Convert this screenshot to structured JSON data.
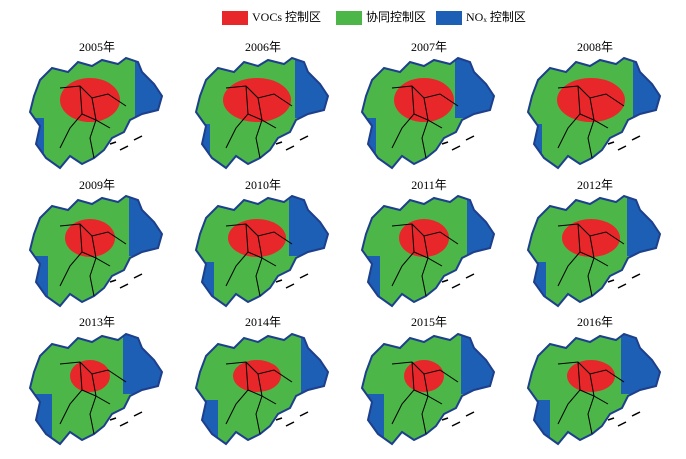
{
  "legend": {
    "items": [
      "VOCs 控制区",
      "协同控制区",
      "NOₓ 控制区"
    ]
  },
  "panels": [
    {
      "title": "2005年"
    },
    {
      "title": "2006年"
    },
    {
      "title": "2007年"
    },
    {
      "title": "2008年"
    },
    {
      "title": "2009年"
    },
    {
      "title": "2010年"
    },
    {
      "title": "2011年"
    },
    {
      "title": "2012年"
    },
    {
      "title": "2013年"
    },
    {
      "title": "2014年"
    },
    {
      "title": "2015年"
    },
    {
      "title": "2016年"
    }
  ]
}
